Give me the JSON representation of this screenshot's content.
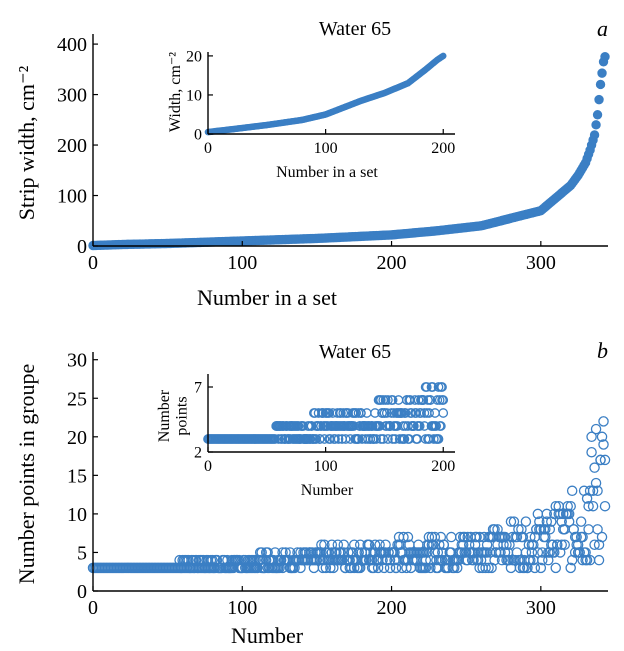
{
  "colors": {
    "marker": "#3b7fc4",
    "axis": "#000000"
  },
  "chart_data": [
    {
      "id": "a",
      "panel_letter": "a",
      "type": "scatter",
      "title": "Water 65",
      "xlabel": "Number in a set",
      "ylabel": "Strip width, cm⁻²",
      "xlim": [
        0,
        345
      ],
      "ylim": [
        0,
        420
      ],
      "xticks": [
        0,
        100,
        200,
        300
      ],
      "yticks": [
        0,
        100,
        200,
        300,
        400
      ],
      "marker": "filled",
      "grid": false,
      "legend": "none",
      "key_points": [
        [
          0,
          1
        ],
        [
          20,
          3
        ],
        [
          50,
          5
        ],
        [
          80,
          8
        ],
        [
          100,
          10
        ],
        [
          150,
          15
        ],
        [
          200,
          22
        ],
        [
          230,
          30
        ],
        [
          260,
          40
        ],
        [
          280,
          55
        ],
        [
          300,
          70
        ],
        [
          310,
          95
        ],
        [
          320,
          120
        ],
        [
          325,
          140
        ],
        [
          330,
          165
        ],
        [
          333,
          190
        ],
        [
          336,
          220
        ],
        [
          338,
          260
        ],
        [
          339,
          290
        ],
        [
          340,
          320
        ],
        [
          342,
          365
        ],
        [
          343,
          375
        ]
      ],
      "inset": {
        "type": "scatter",
        "xlabel": "Number in a set",
        "ylabel": "Width, cm⁻²",
        "xlim": [
          0,
          210
        ],
        "ylim": [
          0,
          21
        ],
        "xticks": [
          0,
          100,
          200
        ],
        "yticks": [
          0,
          10,
          20
        ],
        "marker": "filled",
        "key_points": [
          [
            0,
            0.5
          ],
          [
            20,
            1.2
          ],
          [
            50,
            2.3
          ],
          [
            80,
            3.6
          ],
          [
            100,
            5
          ],
          [
            130,
            8.5
          ],
          [
            150,
            10.5
          ],
          [
            170,
            13
          ],
          [
            185,
            16.5
          ],
          [
            195,
            19
          ],
          [
            200,
            20
          ]
        ]
      }
    },
    {
      "id": "b",
      "panel_letter": "b",
      "type": "scatter",
      "title": "Water 65",
      "xlabel": "Number",
      "ylabel": "Number points in groupe",
      "xlim": [
        0,
        345
      ],
      "ylim": [
        0,
        31
      ],
      "xticks": [
        0,
        100,
        200,
        300
      ],
      "yticks": [
        0,
        5,
        10,
        15,
        20,
        25,
        30
      ],
      "marker": "hollow",
      "grid": false,
      "legend": "none",
      "base_value": 3,
      "spread_max": [
        [
          0,
          3
        ],
        [
          55,
          3
        ],
        [
          60,
          4
        ],
        [
          100,
          4
        ],
        [
          120,
          5
        ],
        [
          180,
          6
        ],
        [
          230,
          7
        ],
        [
          260,
          8
        ],
        [
          290,
          9
        ],
        [
          310,
          11
        ],
        [
          320,
          13
        ],
        [
          330,
          17
        ],
        [
          335,
          22
        ],
        [
          340,
          25
        ]
      ],
      "inset": {
        "type": "scatter",
        "xlabel": "Number",
        "ylabel": "Number points",
        "xlim": [
          0,
          210
        ],
        "ylim": [
          2,
          8
        ],
        "xticks": [
          0,
          100,
          200
        ],
        "yticks": [
          2,
          7
        ],
        "marker": "hollow",
        "base_value": 3,
        "spread_max": [
          [
            0,
            3
          ],
          [
            55,
            3
          ],
          [
            60,
            4
          ],
          [
            120,
            5
          ],
          [
            170,
            6
          ],
          [
            195,
            7
          ]
        ]
      }
    }
  ]
}
